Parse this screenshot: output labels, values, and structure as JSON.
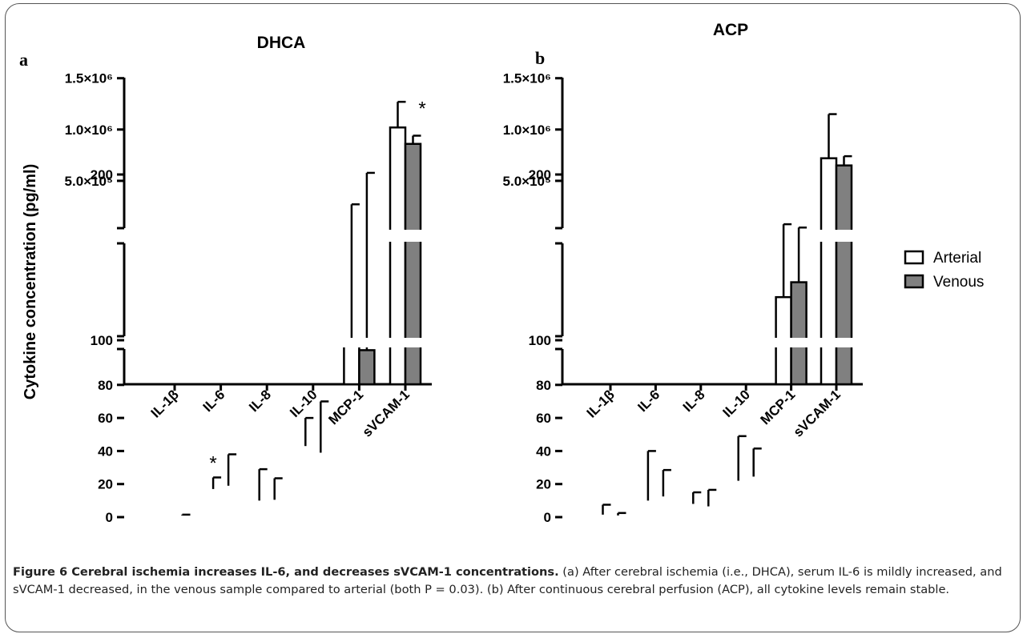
{
  "figure": {
    "caption_title": "Figure 6 Cerebral ischemia increases IL-6, and decreases sVCAM-1 concentrations.",
    "caption_body": " (a) After cerebral ischemia (i.e., DHCA), serum IL-6 is mildly increased, and sVCAM-1 decreased, in the venous sample compared to arterial (both P = 0.03). (b) After continuous cerebral perfusion (ACP), all cytokine levels remain stable."
  },
  "shared": {
    "ylabel": "Cytokine concentration (pg/ml)",
    "legend": [
      {
        "name": "Arterial",
        "color": "#ffffff"
      },
      {
        "name": "Venous",
        "color": "#808080"
      }
    ]
  },
  "chart_data": [
    {
      "type": "bar",
      "panel_letter": "a",
      "title": "DHCA",
      "categories": [
        "IL-1β",
        "IL-6",
        "IL-8",
        "IL-10",
        "MCP-1",
        "sVCAM-1"
      ],
      "series": [
        {
          "name": "Arterial",
          "color": "#ffffff",
          "values": [
            0,
            17,
            10,
            43,
            99,
            1020000
          ],
          "errors": [
            0,
            7,
            19,
            17,
            83,
            250000
          ]
        },
        {
          "name": "Venous",
          "color": "#808080",
          "values": [
            1,
            19,
            10.5,
            39,
            94,
            860000
          ],
          "errors": [
            0.5,
            19,
            13,
            31,
            107,
            80000
          ]
        }
      ],
      "significance": [
        {
          "category": "IL-6",
          "label": "*"
        },
        {
          "category": "sVCAM-1",
          "label": "*"
        }
      ],
      "y_segments": [
        {
          "range": [
            0,
            80
          ],
          "ticks": [
            "0",
            "20",
            "40",
            "60",
            "80"
          ]
        },
        {
          "range": [
            80,
            230
          ],
          "ticks": [
            "100",
            "200"
          ]
        },
        {
          "range": [
            0,
            1500000
          ],
          "ticks": [
            "5.0×10⁵",
            "1.0×10⁶",
            "1.5×10⁶"
          ]
        }
      ],
      "xlabel": "",
      "ylabel": "Cytokine concentration (pg/ml)",
      "grid": false,
      "legend": "right"
    },
    {
      "type": "bar",
      "panel_letter": "b",
      "title": "ACP",
      "categories": [
        "IL-1β",
        "IL-6",
        "IL-8",
        "IL-10",
        "MCP-1",
        "sVCAM-1"
      ],
      "series": [
        {
          "name": "Arterial",
          "color": "#ffffff",
          "values": [
            1.5,
            10,
            8,
            22,
            126,
            720000
          ],
          "errors": [
            6,
            30,
            7,
            27,
            44,
            430000
          ]
        },
        {
          "name": "Venous",
          "color": "#808080",
          "values": [
            1,
            12.5,
            6.5,
            24.5,
            135,
            650000
          ],
          "errors": [
            1.5,
            16,
            10,
            17,
            33,
            90000
          ]
        }
      ],
      "significance": [],
      "y_segments": [
        {
          "range": [
            0,
            80
          ],
          "ticks": [
            "0",
            "20",
            "40",
            "60",
            "80"
          ]
        },
        {
          "range": [
            80,
            230
          ],
          "ticks": [
            "100",
            "200"
          ]
        },
        {
          "range": [
            0,
            1500000
          ],
          "ticks": [
            "5.0×10⁵",
            "1.0×10⁶",
            "1.5×10⁶"
          ]
        }
      ],
      "xlabel": "",
      "ylabel": "",
      "grid": false,
      "legend": "right"
    }
  ]
}
